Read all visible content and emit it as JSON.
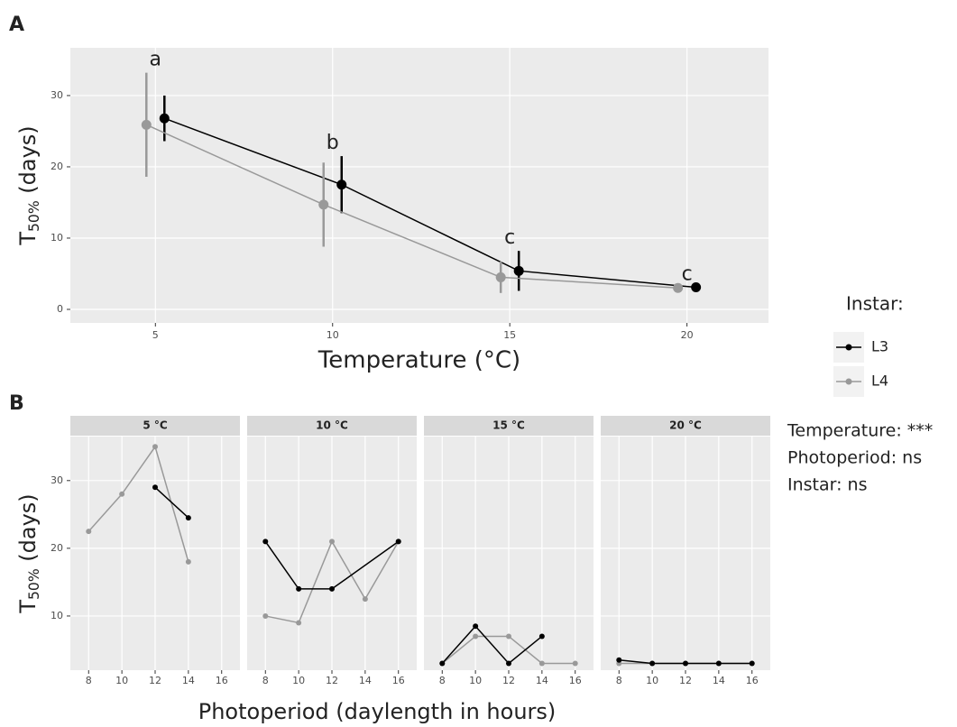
{
  "chart_data": [
    {
      "type": "errorline",
      "label": "A",
      "x": [
        5,
        10,
        15,
        20
      ],
      "series": [
        {
          "name": "L3",
          "color": "#000000",
          "values": [
            26.8,
            17.5,
            5.4,
            3.1
          ],
          "errors": [
            3.2,
            4.0,
            2.8,
            null
          ]
        },
        {
          "name": "L4",
          "color": "#999999",
          "values": [
            25.9,
            14.7,
            4.5,
            3.0
          ],
          "errors": [
            7.3,
            5.9,
            2.2,
            null
          ]
        }
      ],
      "annotations": [
        "a",
        "b",
        "c",
        "c"
      ],
      "xlim": [
        2.6,
        22.3
      ],
      "xticks": [
        5,
        10,
        15,
        20
      ],
      "ylim": [
        -1.9,
        36.7
      ],
      "yticks": [
        0,
        10,
        20,
        30
      ],
      "x_label": "Temperature (°C)",
      "y_label": [
        "T",
        "50%",
        " (days)"
      ],
      "legend_title": "Instar:",
      "grid": true
    },
    {
      "type": "facetline",
      "label": "B",
      "facets": [
        {
          "title": "5 °C",
          "series": [
            {
              "x": [
                12,
                14
              ],
              "values": [
                29,
                24.5
              ]
            },
            {
              "x": [
                8,
                10,
                12,
                14
              ],
              "values": [
                22.5,
                28,
                35,
                18
              ]
            }
          ]
        },
        {
          "title": "10 °C",
          "series": [
            {
              "x": [
                8,
                10,
                12,
                16
              ],
              "values": [
                21,
                14,
                14,
                21
              ]
            },
            {
              "x": [
                8,
                10,
                12,
                14,
                16
              ],
              "values": [
                10,
                9,
                21,
                12.5,
                21
              ]
            }
          ]
        },
        {
          "title": "15 °C",
          "series": [
            {
              "x": [
                8,
                10,
                12,
                14
              ],
              "values": [
                3,
                8.5,
                3,
                7
              ]
            },
            {
              "x": [
                8,
                10,
                12,
                14,
                16
              ],
              "values": [
                3,
                7,
                7,
                3,
                3
              ]
            }
          ]
        },
        {
          "title": "20 °C",
          "series": [
            {
              "x": [
                8,
                10,
                12,
                14,
                16
              ],
              "values": [
                3.5,
                3,
                3,
                3,
                3
              ]
            },
            {
              "x": [
                8,
                10,
                12,
                14,
                16
              ],
              "values": [
                3,
                3,
                3,
                3,
                3
              ]
            }
          ]
        }
      ],
      "xlim": [
        6.9,
        17.1
      ],
      "xticks": [
        8,
        10,
        12,
        14,
        16
      ],
      "ylim": [
        2,
        36.5
      ],
      "yticks": [
        10,
        20,
        30
      ],
      "x_label": "Photoperiod (daylength in hours)",
      "y_label": [
        "T",
        "50%",
        " (days)"
      ],
      "notes": [
        "Temperature: ***",
        "Photoperiod: ns",
        "Instar: ns"
      ],
      "grid": true
    }
  ]
}
